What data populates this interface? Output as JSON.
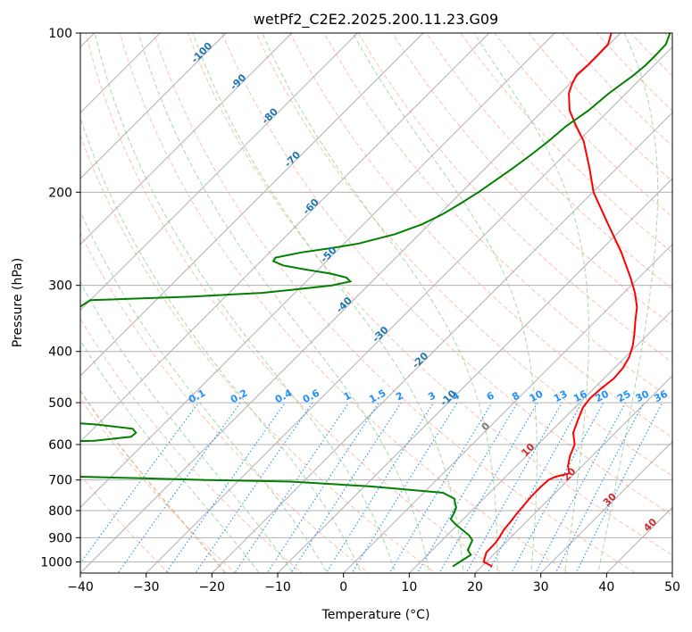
{
  "chart_data": {
    "type": "line",
    "chart_kind": "skew-T log-P diagram",
    "title": "wetPf2_C2E2.2025.200.11.23.G09",
    "xlabel": "Temperature (°C)",
    "ylabel": "Pressure (hPa)",
    "xlim": [
      -40,
      50
    ],
    "ylim": [
      1050,
      100
    ],
    "y_scale": "log",
    "x_ticks": [
      -40,
      -30,
      -20,
      -10,
      0,
      10,
      20,
      30,
      40,
      50
    ],
    "x_tick_labels": [
      "−40",
      "−30",
      "−20",
      "−10",
      "0",
      "10",
      "20",
      "30",
      "40",
      "50"
    ],
    "y_ticks": [
      100,
      200,
      300,
      400,
      500,
      600,
      700,
      800,
      900,
      1000
    ],
    "y_tick_labels": [
      "100",
      "200",
      "300",
      "400",
      "500",
      "600",
      "700",
      "800",
      "900",
      "1000"
    ],
    "grid": true,
    "colors": {
      "temperature": "#ff0000",
      "dewpoint": "#008000",
      "isotherm": "#a8a8a8",
      "isotherm_labels": "#1f77b4",
      "mixing_ratio": "#1e90ff",
      "dry_adiabat": "#ff8c69",
      "moist_adiabat": "#8fd18f",
      "saturated_adiabat": "#d2b48c",
      "dry_adiabat_labels": "#d62728",
      "zero_label": "#808080"
    },
    "series": [
      {
        "role": "temperature",
        "color": "#ff0000",
        "pressure": [
          1020,
          1000,
          960,
          920,
          900,
          870,
          840,
          810,
          780,
          750,
          720,
          700,
          690,
          680,
          660,
          630,
          600,
          570,
          540,
          510,
          490,
          470,
          450,
          430,
          410,
          390,
          370,
          350,
          330,
          310,
          290,
          260,
          230,
          200,
          180,
          160,
          150,
          140,
          130,
          125,
          120,
          115,
          110,
          105,
          100
        ],
        "temperature": [
          21.6,
          19.6,
          18.6,
          18.5,
          18.3,
          17.8,
          17.6,
          17.3,
          17.1,
          16.9,
          16.9,
          17.0,
          17.6,
          19.2,
          17.9,
          16.6,
          15.6,
          13.6,
          12.4,
          11.2,
          10.9,
          11.1,
          11.5,
          11.3,
          10.6,
          9.4,
          7.8,
          6.0,
          4.2,
          1.7,
          -1.3,
          -6.5,
          -12.8,
          -19.9,
          -24.2,
          -29.2,
          -32.6,
          -36.0,
          -38.7,
          -39.6,
          -40.3,
          -40.1,
          -40.1,
          -40.2,
          -41.4
        ]
      },
      {
        "role": "dewpoint",
        "color": "#008000",
        "pressure": [
          1020,
          1000,
          970,
          950,
          930,
          910,
          890,
          870,
          850,
          830,
          810,
          790,
          770,
          760,
          740,
          720,
          705,
          700,
          695,
          690,
          685,
          680,
          600,
          595,
          590,
          580,
          570,
          560,
          550,
          540,
          535,
          530,
          320,
          315,
          310,
          305,
          300,
          295,
          290,
          285,
          280,
          275,
          270,
          266,
          260,
          255,
          250,
          240,
          230,
          220,
          210,
          200,
          190,
          180,
          170,
          160,
          150,
          140,
          130,
          120,
          115,
          110,
          105,
          100
        ],
        "temperature": [
          15.6,
          16.0,
          16.6,
          15.4,
          15.0,
          14.6,
          13.3,
          11.5,
          9.7,
          8.1,
          7.7,
          7.2,
          6.1,
          5.6,
          2.9,
          -9.1,
          -22.0,
          -35.0,
          -45.0,
          -55.0,
          -70.0,
          -80.0,
          -80.0,
          -70.0,
          -58.0,
          -53.0,
          -52.9,
          -54.0,
          -60.0,
          -70.0,
          -80.0,
          -90.0,
          -80.0,
          -65.0,
          -55.0,
          -50.0,
          -45.5,
          -43.3,
          -44.5,
          -47.5,
          -52.0,
          -56.0,
          -58.1,
          -58.3,
          -55.2,
          -51.2,
          -47.8,
          -43.7,
          -41.1,
          -39.5,
          -38.4,
          -37.4,
          -36.6,
          -35.8,
          -35.1,
          -34.5,
          -34.1,
          -33.1,
          -32.6,
          -31.6,
          -31.3,
          -31.3,
          -31.4,
          -32.5
        ]
      }
    ],
    "isotherm_labels": [
      "-100",
      "-90",
      "-80",
      "-70",
      "-60",
      "-50",
      "-40",
      "-30",
      "-20",
      "-10",
      "0",
      "10",
      "20",
      "30",
      "40"
    ],
    "mixing_ratio_labels": [
      "0.1",
      "0.2",
      "0.4",
      "0.6",
      "1",
      "1.5",
      "2",
      "3",
      "4",
      "6",
      "8",
      "10",
      "13",
      "16",
      "20",
      "25",
      "30",
      "36"
    ],
    "mixing_ratio_values": [
      0.1,
      0.2,
      0.4,
      0.6,
      1,
      1.5,
      2,
      3,
      4,
      6,
      8,
      10,
      13,
      16,
      20,
      25,
      30,
      36
    ],
    "isotherm_label_values": [
      -100,
      -90,
      -80,
      -70,
      -60,
      -50,
      -40,
      -30,
      -20,
      -10
    ],
    "isotherm_label_pressures": [
      110,
      125,
      145,
      175,
      215,
      265,
      330,
      375,
      420,
      495
    ],
    "isotherm_zero_label": "0",
    "isotherm_warm_labels": [
      "10",
      "20",
      "30",
      "40"
    ],
    "isotherm_warm_label_values": [
      10,
      20,
      30,
      40
    ],
    "isotherm_warm_label_pressures": [
      620,
      690,
      770,
      860
    ]
  }
}
